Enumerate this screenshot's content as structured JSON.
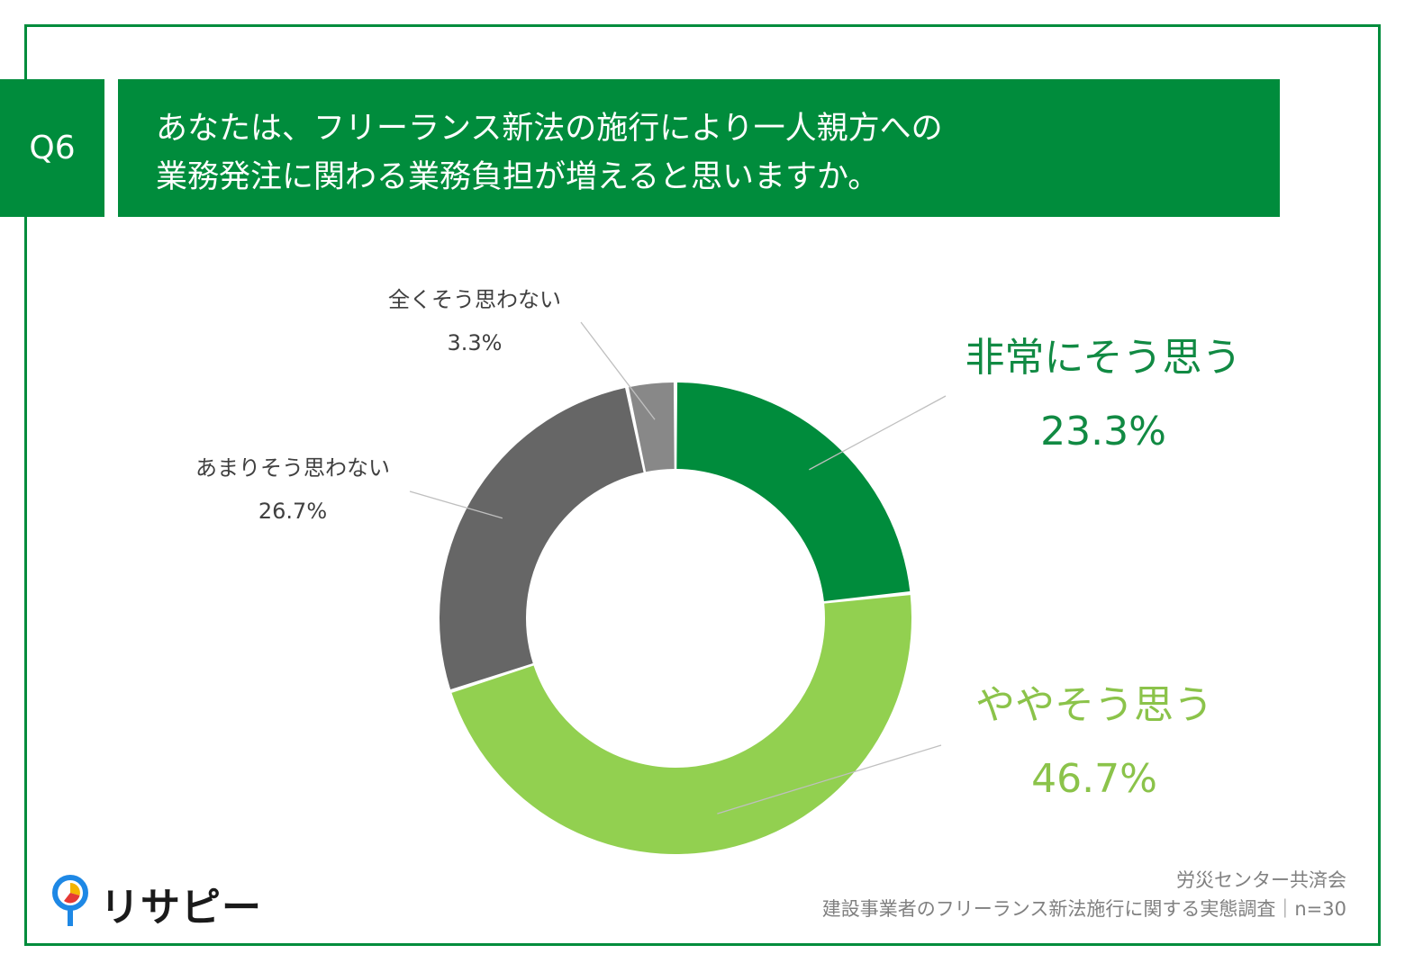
{
  "header": {
    "badge": "Q6",
    "question_line1": "あなたは、フリーランス新法の施行により一人親方への",
    "question_line2": "業務発注に関わる業務負担が増えると思いますか。"
  },
  "chart_data": {
    "type": "pie",
    "style": "donut",
    "categories": [
      "非常にそう思う",
      "ややそう思う",
      "あまりそう思わない",
      "全くそう思わない"
    ],
    "values": [
      23.3,
      46.7,
      26.7,
      3.3
    ],
    "value_labels": [
      "23.3%",
      "46.7%",
      "26.7%",
      "3.3%"
    ],
    "colors": [
      "#008c3c",
      "#92d050",
      "#666666",
      "#888888"
    ],
    "label_colors": [
      "#118a43",
      "#8bc34a",
      "#404040",
      "#404040"
    ]
  },
  "source": {
    "line1": "労災センター共済会",
    "line2": "建設事業者のフリーランス新法施行に関する実態調査｜n=30"
  },
  "logo": {
    "text": "リサピー",
    "colors": [
      "#1e88e5",
      "#f4b400",
      "#e53935"
    ]
  }
}
